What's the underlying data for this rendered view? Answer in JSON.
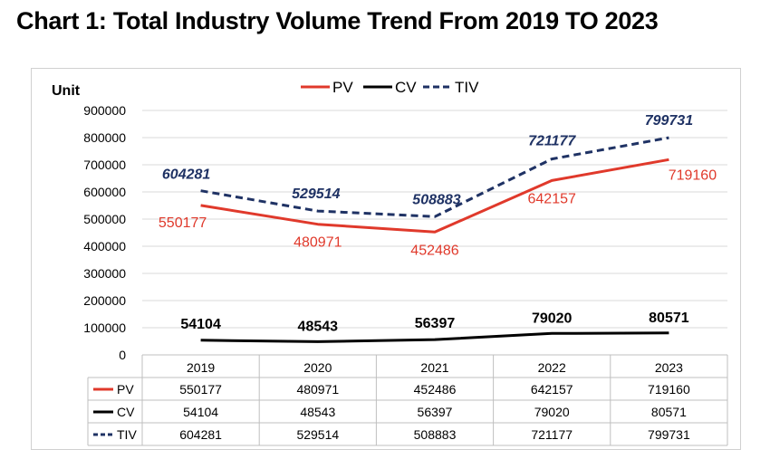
{
  "page_title": "Chart 1: Total Industry Volume Trend From 2019 TO 2023",
  "chart_data": {
    "type": "line",
    "title": "Chart 1: Total Industry Volume Trend From 2019 TO 2023",
    "ylabel": "Unit",
    "xlabel": "",
    "categories": [
      "2019",
      "2020",
      "2021",
      "2022",
      "2023"
    ],
    "ylim": [
      0,
      900000
    ],
    "yticks": [
      "900000",
      "800000",
      "700000",
      "600000",
      "500000",
      "400000",
      "300000",
      "200000",
      "100000",
      "0"
    ],
    "legend_position": "top",
    "data_table": true,
    "series": [
      {
        "name": "PV",
        "color": "#e0392b",
        "style": "solid",
        "values": [
          550177,
          480971,
          452486,
          642157,
          719160
        ],
        "labels": [
          "550177",
          "480971",
          "452486",
          "642157",
          "719160"
        ]
      },
      {
        "name": "CV",
        "color": "#000000",
        "style": "solid",
        "values": [
          54104,
          48543,
          56397,
          79020,
          80571
        ],
        "labels": [
          "54104",
          "48543",
          "56397",
          "79020",
          "80571"
        ]
      },
      {
        "name": "TIV",
        "color": "#1f3264",
        "style": "dashed",
        "values": [
          604281,
          529514,
          508883,
          721177,
          799731
        ],
        "labels": [
          "604281",
          "529514",
          "508883",
          "721177",
          "799731"
        ]
      }
    ]
  }
}
